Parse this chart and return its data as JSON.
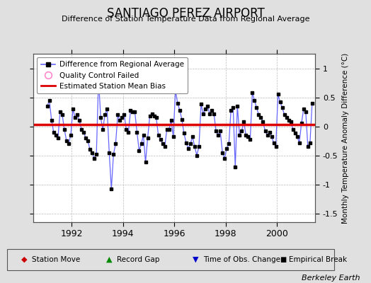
{
  "title": "SANTIAGO PEREZ AIRPORT",
  "subtitle": "Difference of Station Temperature Data from Regional Average",
  "ylabel_right": "Monthly Temperature Anomaly Difference (°C)",
  "bias_value": 0.03,
  "xlim": [
    1990.5,
    2001.5
  ],
  "ylim": [
    -1.65,
    1.25
  ],
  "yticks": [
    -1.5,
    -1.0,
    -0.5,
    0.0,
    0.5,
    1.0
  ],
  "xticks": [
    1992,
    1994,
    1996,
    1998,
    2000
  ],
  "background_color": "#e0e0e0",
  "plot_bg_color": "#ffffff",
  "line_color": "#6666ff",
  "marker_color": "#000000",
  "bias_color": "#dd0000",
  "watermark": "Berkeley Earth",
  "time_series": [
    1991.042,
    1991.125,
    1991.208,
    1991.292,
    1991.375,
    1991.458,
    1991.542,
    1991.625,
    1991.708,
    1991.792,
    1991.875,
    1991.958,
    1992.042,
    1992.125,
    1992.208,
    1992.292,
    1992.375,
    1992.458,
    1992.542,
    1992.625,
    1992.708,
    1992.792,
    1992.875,
    1992.958,
    1993.042,
    1993.125,
    1993.208,
    1993.292,
    1993.375,
    1993.458,
    1993.542,
    1993.625,
    1993.708,
    1993.792,
    1993.875,
    1993.958,
    1994.042,
    1994.125,
    1994.208,
    1994.292,
    1994.375,
    1994.458,
    1994.542,
    1994.625,
    1994.708,
    1994.792,
    1994.875,
    1994.958,
    1995.042,
    1995.125,
    1995.208,
    1995.292,
    1995.375,
    1995.458,
    1995.542,
    1995.625,
    1995.708,
    1995.792,
    1995.875,
    1995.958,
    1996.042,
    1996.125,
    1996.208,
    1996.292,
    1996.375,
    1996.458,
    1996.542,
    1996.625,
    1996.708,
    1996.792,
    1996.875,
    1996.958,
    1997.042,
    1997.125,
    1997.208,
    1997.292,
    1997.375,
    1997.458,
    1997.542,
    1997.625,
    1997.708,
    1997.792,
    1997.875,
    1997.958,
    1998.042,
    1998.125,
    1998.208,
    1998.292,
    1998.375,
    1998.458,
    1998.542,
    1998.625,
    1998.708,
    1998.792,
    1998.875,
    1998.958,
    1999.042,
    1999.125,
    1999.208,
    1999.292,
    1999.375,
    1999.458,
    1999.542,
    1999.625,
    1999.708,
    1999.792,
    1999.875,
    1999.958,
    2000.042,
    2000.125,
    2000.208,
    2000.292,
    2000.375,
    2000.458,
    2000.542,
    2000.625,
    2000.708,
    2000.792,
    2000.875,
    2000.958,
    2001.042,
    2001.125,
    2001.208,
    2001.292,
    2001.375
  ],
  "values": [
    0.35,
    0.45,
    0.1,
    -0.1,
    -0.15,
    -0.2,
    0.25,
    0.2,
    -0.05,
    -0.25,
    -0.3,
    -0.15,
    0.3,
    0.15,
    0.2,
    0.1,
    -0.05,
    -0.1,
    -0.2,
    -0.25,
    -0.4,
    -0.45,
    -0.55,
    -0.48,
    0.82,
    0.15,
    -0.05,
    0.2,
    0.3,
    -0.45,
    -1.08,
    -0.48,
    -0.3,
    0.2,
    0.1,
    0.15,
    0.2,
    -0.05,
    -0.1,
    0.28,
    0.25,
    0.25,
    -0.1,
    -0.42,
    -0.3,
    -0.15,
    -0.62,
    -0.2,
    0.18,
    0.22,
    0.18,
    0.15,
    -0.15,
    -0.22,
    -0.3,
    -0.35,
    -0.05,
    -0.05,
    0.1,
    -0.18,
    0.62,
    0.4,
    0.28,
    0.12,
    -0.12,
    -0.28,
    -0.38,
    -0.3,
    -0.18,
    -0.35,
    -0.5,
    -0.35,
    0.38,
    0.22,
    0.3,
    0.35,
    0.22,
    0.28,
    0.22,
    -0.08,
    -0.15,
    -0.08,
    -0.45,
    -0.55,
    -0.38,
    -0.3,
    0.28,
    0.32,
    -0.7,
    0.35,
    -0.15,
    -0.08,
    0.08,
    -0.15,
    -0.18,
    -0.22,
    0.58,
    0.45,
    0.32,
    0.2,
    0.15,
    0.08,
    -0.08,
    -0.15,
    -0.1,
    -0.18,
    -0.28,
    -0.35,
    0.55,
    0.42,
    0.32,
    0.2,
    0.15,
    0.1,
    0.08,
    -0.05,
    -0.12,
    -0.18,
    -0.28,
    0.05,
    0.3,
    0.25,
    -0.35,
    -0.28,
    0.4
  ],
  "bottom_legend": {
    "station_move_color": "#cc0000",
    "record_gap_color": "#008800",
    "time_obs_color": "#0000cc",
    "empirical_break_color": "#000000"
  }
}
